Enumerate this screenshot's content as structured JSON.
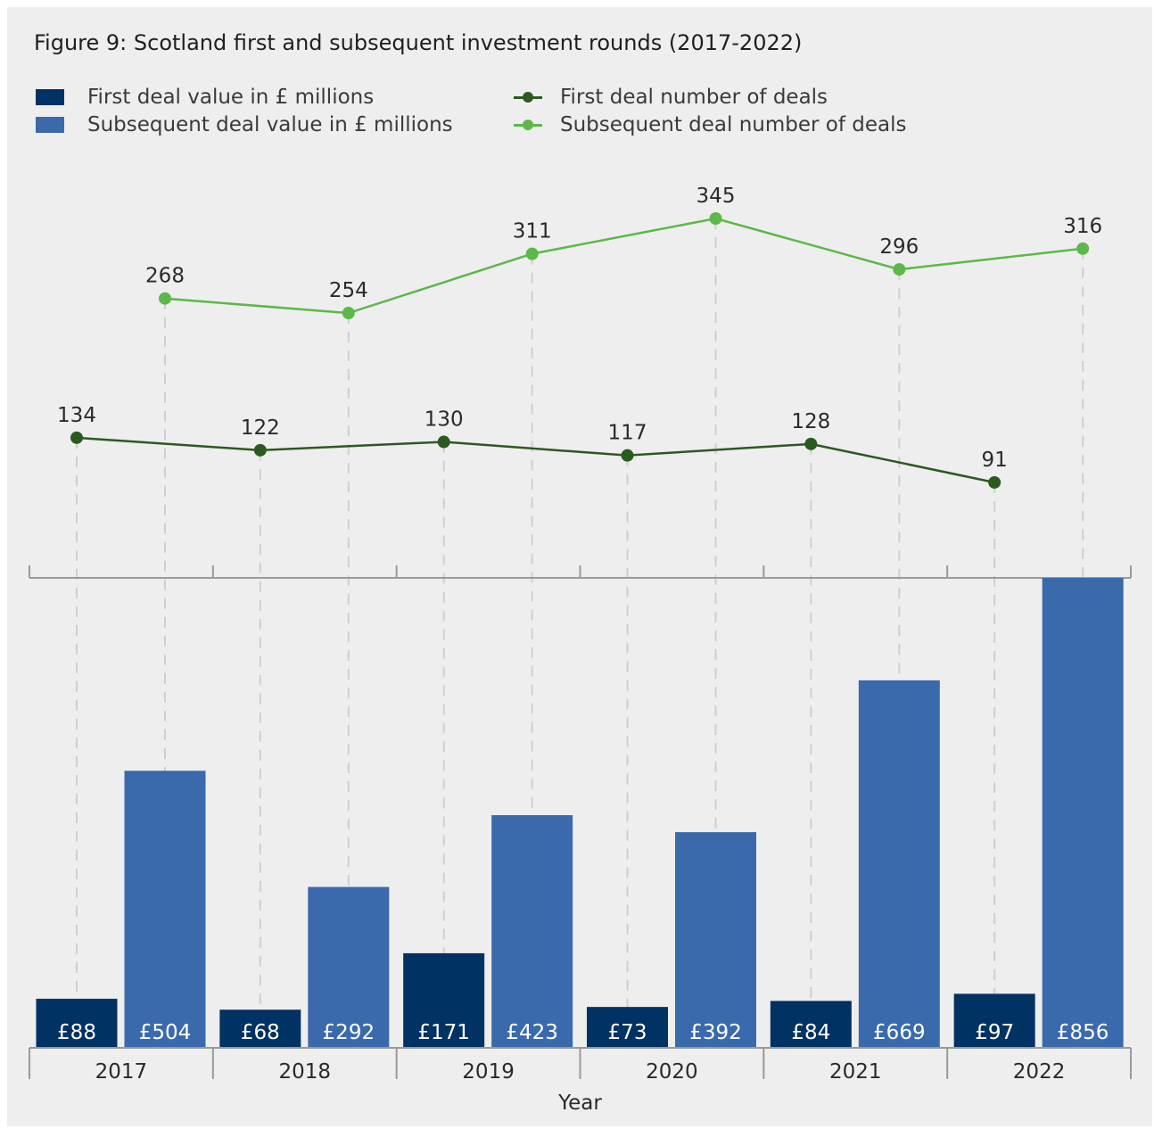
{
  "title": "Figure 9: Scotland first and subsequent investment rounds (2017-2022)",
  "legend": [
    {
      "label": "First deal value in £ millions",
      "kind": "bar",
      "color": "#003263"
    },
    {
      "label": "Subsequent deal value in £ millions",
      "kind": "bar",
      "color": "#3a6aac"
    },
    {
      "label": "First deal number of deals",
      "kind": "line",
      "color": "#2b5a1f"
    },
    {
      "label": "Subsequent deal number of deals",
      "kind": "line",
      "color": "#5cb848"
    }
  ],
  "chart_data": {
    "type": "bar",
    "xlabel": "Year",
    "categories": [
      "2017",
      "2018",
      "2019",
      "2020",
      "2021",
      "2022"
    ],
    "series": [
      {
        "name": "First deal value in £ millions",
        "type": "bar",
        "color": "#003263",
        "values": [
          88,
          68,
          171,
          73,
          84,
          97
        ],
        "labels": [
          "£88",
          "£68",
          "£171",
          "£73",
          "£84",
          "£97"
        ]
      },
      {
        "name": "Subsequent deal value in £ millions",
        "type": "bar",
        "color": "#3a6aac",
        "values": [
          504,
          292,
          423,
          392,
          669,
          856
        ],
        "labels": [
          "£504",
          "£292",
          "£423",
          "£392",
          "£669",
          "£856"
        ]
      },
      {
        "name": "First deal number of deals",
        "type": "line",
        "color": "#2b5a1f",
        "values": [
          134,
          122,
          130,
          117,
          128,
          91
        ]
      },
      {
        "name": "Subsequent deal number of deals",
        "type": "line",
        "color": "#5cb848",
        "values": [
          268,
          254,
          311,
          345,
          296,
          316
        ]
      }
    ],
    "bar_ylim": [
      0,
      856
    ],
    "line_ylim": [
      0,
      345
    ],
    "grid": "dashed vertical guides"
  }
}
